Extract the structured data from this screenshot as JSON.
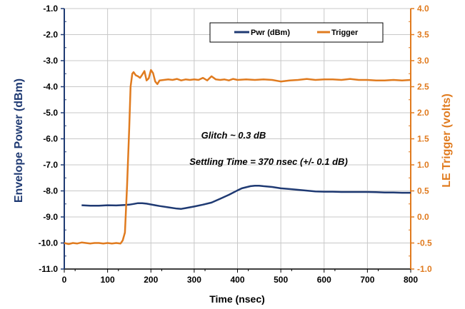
{
  "chart_data": {
    "type": "line",
    "xlabel": "Time (nsec)",
    "ylabel_left": "Envelope Power (dBm)",
    "ylabel_right": "LE Trigger (volts)",
    "xlim": [
      0,
      800
    ],
    "ylim_left": [
      -11.0,
      -1.0
    ],
    "ylim_right": [
      -1.0,
      4.0
    ],
    "x_ticks": [
      "0",
      "100",
      "200",
      "300",
      "400",
      "500",
      "600",
      "700",
      "800"
    ],
    "y_left_ticks": [
      "-1.0",
      "-2.0",
      "-3.0",
      "-4.0",
      "-5.0",
      "-6.0",
      "-7.0",
      "-8.0",
      "-9.0",
      "-10.0",
      "-11.0"
    ],
    "y_right_ticks": [
      "4.0",
      "3.5",
      "3.0",
      "2.5",
      "2.0",
      "1.5",
      "1.0",
      "0.5",
      "0.0",
      "-0.5",
      "-1.0"
    ],
    "grid": true,
    "legend_position": "top-right",
    "annotations": [
      "Glitch ~ 0.3 dB",
      "Settling Time = 370 nsec (+/- 0.1 dB)"
    ],
    "series": [
      {
        "name": "Pwr (dBm)",
        "axis": "left",
        "color": "#1f3a73",
        "x": [
          40,
          60,
          80,
          100,
          120,
          140,
          150,
          160,
          170,
          180,
          190,
          200,
          210,
          220,
          240,
          260,
          270,
          280,
          300,
          320,
          340,
          360,
          380,
          400,
          410,
          420,
          430,
          440,
          450,
          460,
          480,
          500,
          520,
          540,
          560,
          580,
          600,
          620,
          640,
          660,
          680,
          700,
          720,
          740,
          760,
          780,
          800
        ],
        "y": [
          -8.55,
          -8.57,
          -8.57,
          -8.55,
          -8.56,
          -8.54,
          -8.53,
          -8.5,
          -8.47,
          -8.47,
          -8.49,
          -8.52,
          -8.55,
          -8.58,
          -8.63,
          -8.68,
          -8.69,
          -8.66,
          -8.6,
          -8.53,
          -8.45,
          -8.3,
          -8.15,
          -7.98,
          -7.9,
          -7.86,
          -7.82,
          -7.8,
          -7.8,
          -7.82,
          -7.85,
          -7.9,
          -7.93,
          -7.96,
          -7.99,
          -8.02,
          -8.03,
          -8.03,
          -8.04,
          -8.04,
          -8.04,
          -8.04,
          -8.05,
          -8.06,
          -8.06,
          -8.07,
          -8.07
        ]
      },
      {
        "name": "Trigger",
        "axis": "right",
        "color": "#e07b1f",
        "x": [
          0,
          10,
          20,
          30,
          40,
          50,
          60,
          70,
          80,
          90,
          100,
          110,
          120,
          130,
          135,
          140,
          145,
          150,
          153,
          157,
          160,
          165,
          170,
          175,
          180,
          185,
          190,
          195,
          200,
          205,
          210,
          215,
          220,
          230,
          240,
          250,
          260,
          270,
          280,
          290,
          300,
          310,
          320,
          330,
          340,
          350,
          360,
          370,
          380,
          390,
          400,
          420,
          440,
          460,
          480,
          500,
          520,
          540,
          560,
          580,
          600,
          620,
          640,
          660,
          680,
          700,
          720,
          740,
          760,
          780,
          800
        ],
        "y": [
          -0.5,
          -0.52,
          -0.5,
          -0.51,
          -0.49,
          -0.5,
          -0.51,
          -0.5,
          -0.5,
          -0.51,
          -0.5,
          -0.51,
          -0.5,
          -0.51,
          -0.45,
          -0.3,
          0.6,
          1.7,
          2.5,
          2.75,
          2.78,
          2.72,
          2.7,
          2.67,
          2.73,
          2.8,
          2.62,
          2.66,
          2.82,
          2.76,
          2.6,
          2.55,
          2.62,
          2.63,
          2.64,
          2.63,
          2.65,
          2.62,
          2.64,
          2.63,
          2.64,
          2.63,
          2.67,
          2.62,
          2.7,
          2.64,
          2.63,
          2.64,
          2.62,
          2.65,
          2.63,
          2.64,
          2.63,
          2.64,
          2.63,
          2.6,
          2.62,
          2.63,
          2.65,
          2.63,
          2.64,
          2.64,
          2.63,
          2.65,
          2.63,
          2.63,
          2.62,
          2.62,
          2.63,
          2.62,
          2.63
        ]
      }
    ]
  }
}
